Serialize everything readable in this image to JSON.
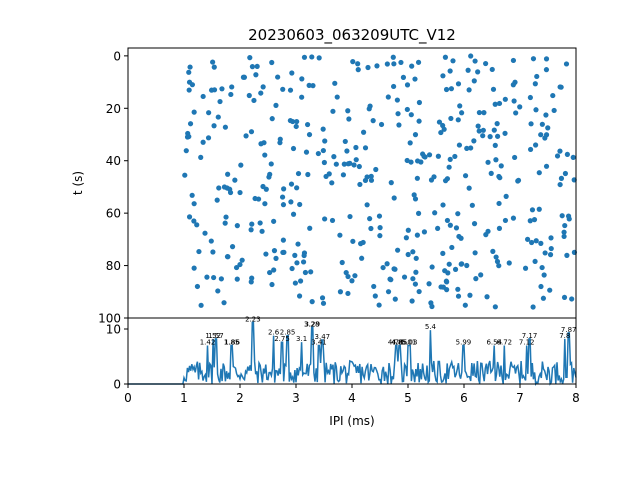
{
  "chart_data": [
    {
      "type": "scatter",
      "title": "20230603_063209UTC_V12",
      "ylabel": "t (s)",
      "xlim": [
        0,
        8
      ],
      "ylim": [
        100,
        -3
      ],
      "yticks": [
        0,
        20,
        40,
        60,
        80,
        100
      ],
      "color": "#1f77b4",
      "y_inverted": true,
      "point_density_per_unit_x": 65,
      "x_range_of_points": [
        1.0,
        8.0
      ]
    },
    {
      "type": "line",
      "xlabel": "IPI (ms)",
      "xlim": [
        0,
        8
      ],
      "ylim": [
        0,
        12
      ],
      "xticks": [
        0,
        1,
        2,
        3,
        4,
        5,
        6,
        7,
        8
      ],
      "yticks": [
        0,
        10
      ],
      "color": "#1f77b4",
      "peaks": [
        {
          "x": 1.42,
          "y": 7.0,
          "label": "1.42"
        },
        {
          "x": 1.52,
          "y": 8.2,
          "label": "1.52"
        },
        {
          "x": 1.57,
          "y": 8.2,
          "label": "1.57"
        },
        {
          "x": 1.85,
          "y": 7.0,
          "label": "1.85"
        },
        {
          "x": 1.86,
          "y": 7.0,
          "label": "1.86"
        },
        {
          "x": 2.23,
          "y": 11.2,
          "label": "2.23"
        },
        {
          "x": 2.6,
          "y": 8.8,
          "label": "2.6"
        },
        {
          "x": 2.75,
          "y": 7.6,
          "label": "2.75"
        },
        {
          "x": 2.85,
          "y": 8.8,
          "label": "2.85"
        },
        {
          "x": 3.1,
          "y": 7.6,
          "label": "3.1"
        },
        {
          "x": 3.28,
          "y": 10.3,
          "label": "3.28"
        },
        {
          "x": 3.29,
          "y": 10.3,
          "label": "3.29"
        },
        {
          "x": 3.41,
          "y": 7.0,
          "label": "3.41"
        },
        {
          "x": 3.47,
          "y": 8.0,
          "label": "3.47"
        },
        {
          "x": 4.78,
          "y": 7.0,
          "label": "4.78"
        },
        {
          "x": 4.8,
          "y": 7.0,
          "label": "4.8"
        },
        {
          "x": 4.85,
          "y": 7.0,
          "label": "4.85"
        },
        {
          "x": 5.01,
          "y": 7.0,
          "label": "5.01"
        },
        {
          "x": 5.03,
          "y": 7.0,
          "label": "5.03"
        },
        {
          "x": 5.4,
          "y": 9.8,
          "label": "5.4"
        },
        {
          "x": 5.99,
          "y": 7.0,
          "label": "5.99"
        },
        {
          "x": 6.54,
          "y": 7.0,
          "label": "6.54"
        },
        {
          "x": 6.72,
          "y": 7.0,
          "label": "6.72"
        },
        {
          "x": 7.12,
          "y": 7.0,
          "label": "7.12"
        },
        {
          "x": 7.17,
          "y": 8.2,
          "label": "7.17"
        },
        {
          "x": 7.8,
          "y": 8.2,
          "label": "7.8"
        },
        {
          "x": 7.87,
          "y": 9.3,
          "label": "7.87"
        }
      ]
    }
  ]
}
